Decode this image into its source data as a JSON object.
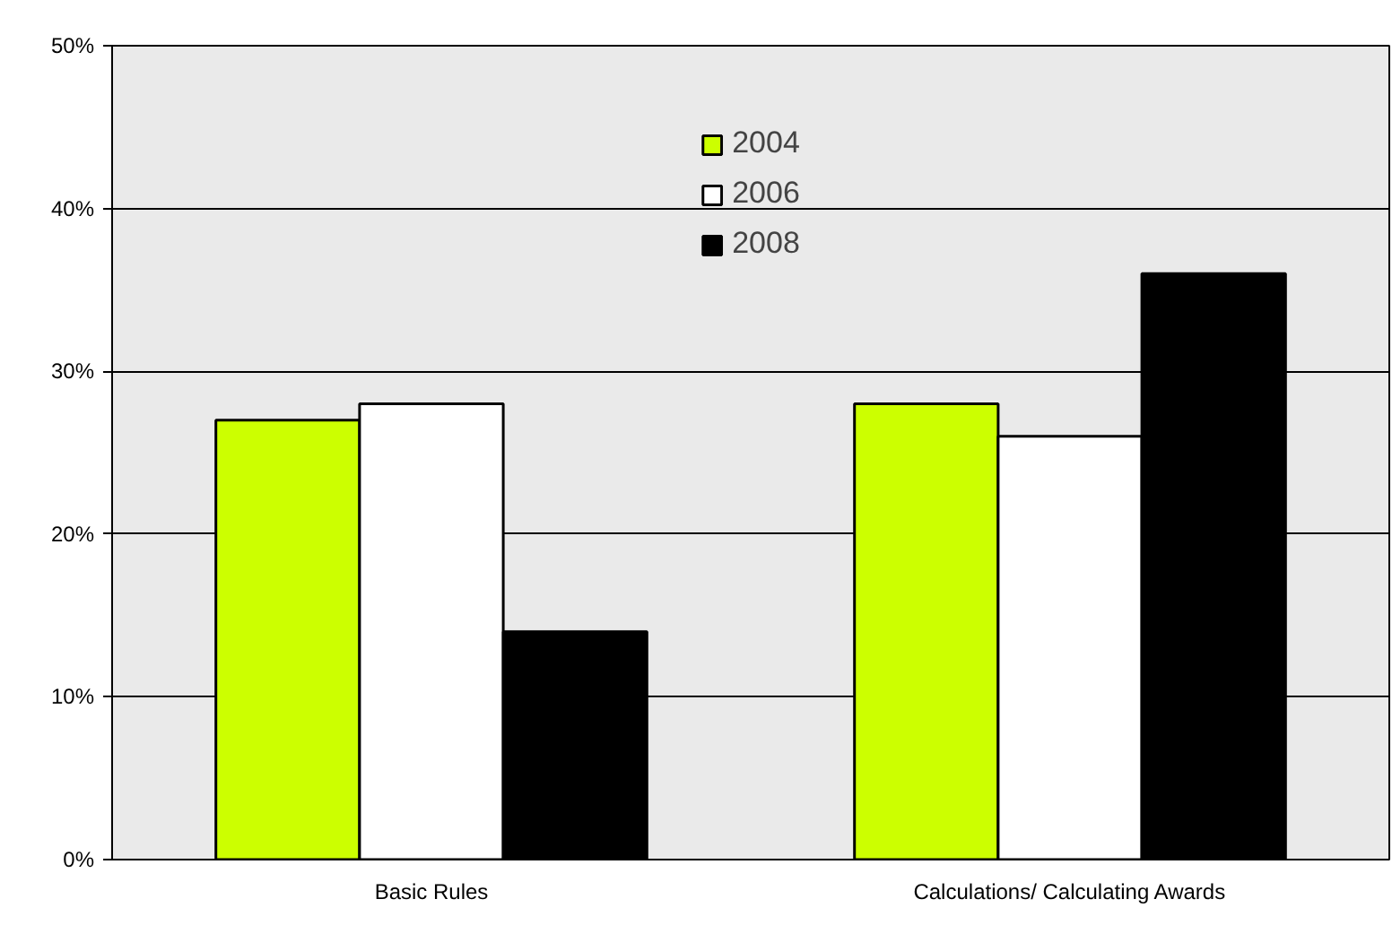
{
  "chart_data": {
    "type": "bar",
    "categories": [
      "Basic Rules",
      "Calculations/ Calculating Awards"
    ],
    "series": [
      {
        "name": "2004",
        "color": "#ccff00",
        "values": [
          27,
          28
        ]
      },
      {
        "name": "2006",
        "color": "#ffffff",
        "values": [
          28,
          26
        ]
      },
      {
        "name": "2008",
        "color": "#000000",
        "values": [
          14,
          36
        ]
      }
    ],
    "ylim": [
      0,
      50
    ],
    "yticks": [
      {
        "value": 0,
        "label": "0%"
      },
      {
        "value": 10,
        "label": "10%"
      },
      {
        "value": 20,
        "label": "20%"
      },
      {
        "value": 30,
        "label": "30%"
      },
      {
        "value": 40,
        "label": "40%"
      },
      {
        "value": 50,
        "label": "50%"
      }
    ],
    "grid": "y",
    "legend": "top"
  }
}
